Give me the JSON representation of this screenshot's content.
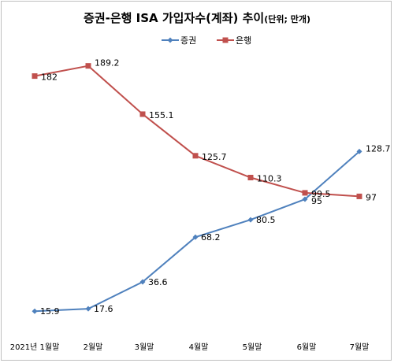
{
  "chart_data": {
    "type": "line",
    "title": "증권-은행 ISA 가입자수(계좌) 추이",
    "unit_note": "(단위; 만개)",
    "categories": [
      "2021년 1월말",
      "2월말",
      "3월말",
      "4월말",
      "5월말",
      "6월말",
      "7월말"
    ],
    "series": [
      {
        "name": "증권",
        "values": [
          15.9,
          17.6,
          36.6,
          68.2,
          80.5,
          95,
          128.7
        ],
        "color": "#4f81bd",
        "marker": "diamond"
      },
      {
        "name": "은행",
        "values": [
          182,
          189.2,
          155.1,
          125.7,
          110.3,
          99.5,
          97
        ],
        "color": "#c0504d",
        "marker": "square"
      }
    ],
    "legend_position": "top-right",
    "grid": false
  }
}
